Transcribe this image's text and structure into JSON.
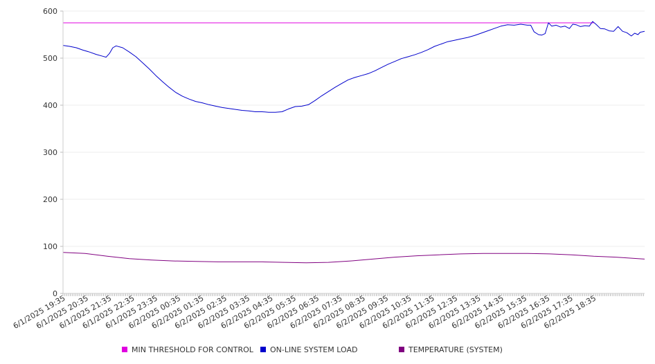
{
  "chart_data": {
    "type": "line",
    "title": "",
    "xlabel": "",
    "ylabel": "",
    "ylim": [
      0,
      600
    ],
    "yticks": [
      0,
      100,
      200,
      300,
      400,
      500,
      600
    ],
    "xticks": [
      "6/1/2025 19:35",
      "6/1/2025 20:35",
      "6/1/2025 21:35",
      "6/1/2025 22:35",
      "6/1/2025 23:35",
      "6/2/2025 00:35",
      "6/2/2025 01:35",
      "6/2/2025 02:35",
      "6/2/2025 03:35",
      "6/2/2025 04:35",
      "6/2/2025 05:35",
      "6/2/2025 06:35",
      "6/2/2025 07:35",
      "6/2/2025 08:35",
      "6/2/2025 09:35",
      "6/2/2025 10:35",
      "6/2/2025 11:35",
      "6/2/2025 12:35",
      "6/2/2025 13:35",
      "6/2/2025 14:35",
      "6/2/2025 15:35",
      "6/2/2025 16:35",
      "6/2/2025 17:35",
      "6/2/2025 18:35"
    ],
    "x_hours_span": 24,
    "grid": true,
    "legend_position": "bottom",
    "series": [
      {
        "name": "MIN THRESHOLD FOR CONTROL",
        "color": "#e000e0",
        "points": [
          [
            0,
            575
          ],
          [
            24,
            575
          ]
        ]
      },
      {
        "name": "ON-LINE SYSTEM LOAD",
        "color": "#0000cc",
        "points": [
          [
            0,
            527
          ],
          [
            0.3,
            525
          ],
          [
            0.6,
            522
          ],
          [
            0.9,
            517
          ],
          [
            1.2,
            513
          ],
          [
            1.5,
            508
          ],
          [
            1.8,
            504
          ],
          [
            1.95,
            502
          ],
          [
            2.1,
            510
          ],
          [
            2.25,
            522
          ],
          [
            2.4,
            526
          ],
          [
            2.7,
            522
          ],
          [
            3,
            513
          ],
          [
            3.3,
            503
          ],
          [
            3.6,
            490
          ],
          [
            3.9,
            477
          ],
          [
            4.2,
            463
          ],
          [
            4.5,
            450
          ],
          [
            4.8,
            438
          ],
          [
            5.1,
            427
          ],
          [
            5.4,
            419
          ],
          [
            5.7,
            413
          ],
          [
            6,
            408
          ],
          [
            6.3,
            405
          ],
          [
            6.6,
            401
          ],
          [
            6.9,
            398
          ],
          [
            7.2,
            395
          ],
          [
            7.5,
            393
          ],
          [
            7.8,
            391
          ],
          [
            8.1,
            389
          ],
          [
            8.4,
            388
          ],
          [
            8.7,
            386
          ],
          [
            9,
            386
          ],
          [
            9.3,
            385
          ],
          [
            9.6,
            385
          ],
          [
            9.9,
            386
          ],
          [
            10.2,
            392
          ],
          [
            10.5,
            397
          ],
          [
            10.8,
            398
          ],
          [
            11.1,
            401
          ],
          [
            11.4,
            410
          ],
          [
            11.7,
            420
          ],
          [
            12,
            429
          ],
          [
            12.3,
            438
          ],
          [
            12.6,
            446
          ],
          [
            12.9,
            454
          ],
          [
            13.2,
            459
          ],
          [
            13.5,
            463
          ],
          [
            13.8,
            467
          ],
          [
            14.1,
            473
          ],
          [
            14.4,
            480
          ],
          [
            14.7,
            487
          ],
          [
            15,
            493
          ],
          [
            15.3,
            499
          ],
          [
            15.6,
            503
          ],
          [
            15.9,
            507
          ],
          [
            16.2,
            512
          ],
          [
            16.5,
            518
          ],
          [
            16.8,
            525
          ],
          [
            17.1,
            530
          ],
          [
            17.4,
            535
          ],
          [
            17.7,
            538
          ],
          [
            18,
            541
          ],
          [
            18.3,
            544
          ],
          [
            18.6,
            548
          ],
          [
            18.9,
            553
          ],
          [
            19.2,
            558
          ],
          [
            19.5,
            563
          ],
          [
            19.8,
            568
          ],
          [
            20.1,
            571
          ],
          [
            20.4,
            570
          ],
          [
            20.7,
            572
          ],
          [
            21,
            570
          ],
          [
            21.15,
            570
          ],
          [
            21.3,
            556
          ],
          [
            21.5,
            550
          ],
          [
            21.65,
            549
          ],
          [
            21.8,
            552
          ],
          [
            21.95,
            575
          ],
          [
            22.1,
            568
          ],
          [
            22.3,
            570
          ],
          [
            22.5,
            566
          ],
          [
            22.7,
            568
          ],
          [
            22.9,
            563
          ],
          [
            23.05,
            572
          ],
          [
            23.2,
            571
          ],
          [
            23.4,
            567
          ],
          [
            23.6,
            569
          ],
          [
            23.8,
            568
          ],
          [
            23.95,
            578
          ],
          [
            24.1,
            572
          ],
          [
            24.3,
            563
          ],
          [
            24.5,
            562
          ],
          [
            24.7,
            558
          ],
          [
            24.9,
            557
          ],
          [
            25.1,
            567
          ],
          [
            25.3,
            557
          ],
          [
            25.5,
            554
          ],
          [
            25.7,
            547
          ],
          [
            25.85,
            553
          ],
          [
            26,
            550
          ],
          [
            26.1,
            555
          ],
          [
            26.3,
            557
          ]
        ]
      },
      {
        "name": "TEMPERATURE (SYSTEM)",
        "color": "#800080",
        "points": [
          [
            0,
            87
          ],
          [
            1,
            85
          ],
          [
            2,
            79
          ],
          [
            3,
            74
          ],
          [
            4,
            71
          ],
          [
            5,
            69
          ],
          [
            6,
            68
          ],
          [
            7,
            67
          ],
          [
            8,
            67
          ],
          [
            9,
            67
          ],
          [
            10,
            66
          ],
          [
            11,
            65
          ],
          [
            12,
            66
          ],
          [
            13,
            69
          ],
          [
            14,
            73
          ],
          [
            15,
            77
          ],
          [
            16,
            80
          ],
          [
            17,
            82
          ],
          [
            18,
            84
          ],
          [
            19,
            85
          ],
          [
            20,
            85
          ],
          [
            21,
            85
          ],
          [
            22,
            84
          ],
          [
            23,
            82
          ],
          [
            24,
            79
          ],
          [
            25,
            77
          ],
          [
            26,
            74
          ],
          [
            26.3,
            73
          ]
        ]
      }
    ]
  }
}
